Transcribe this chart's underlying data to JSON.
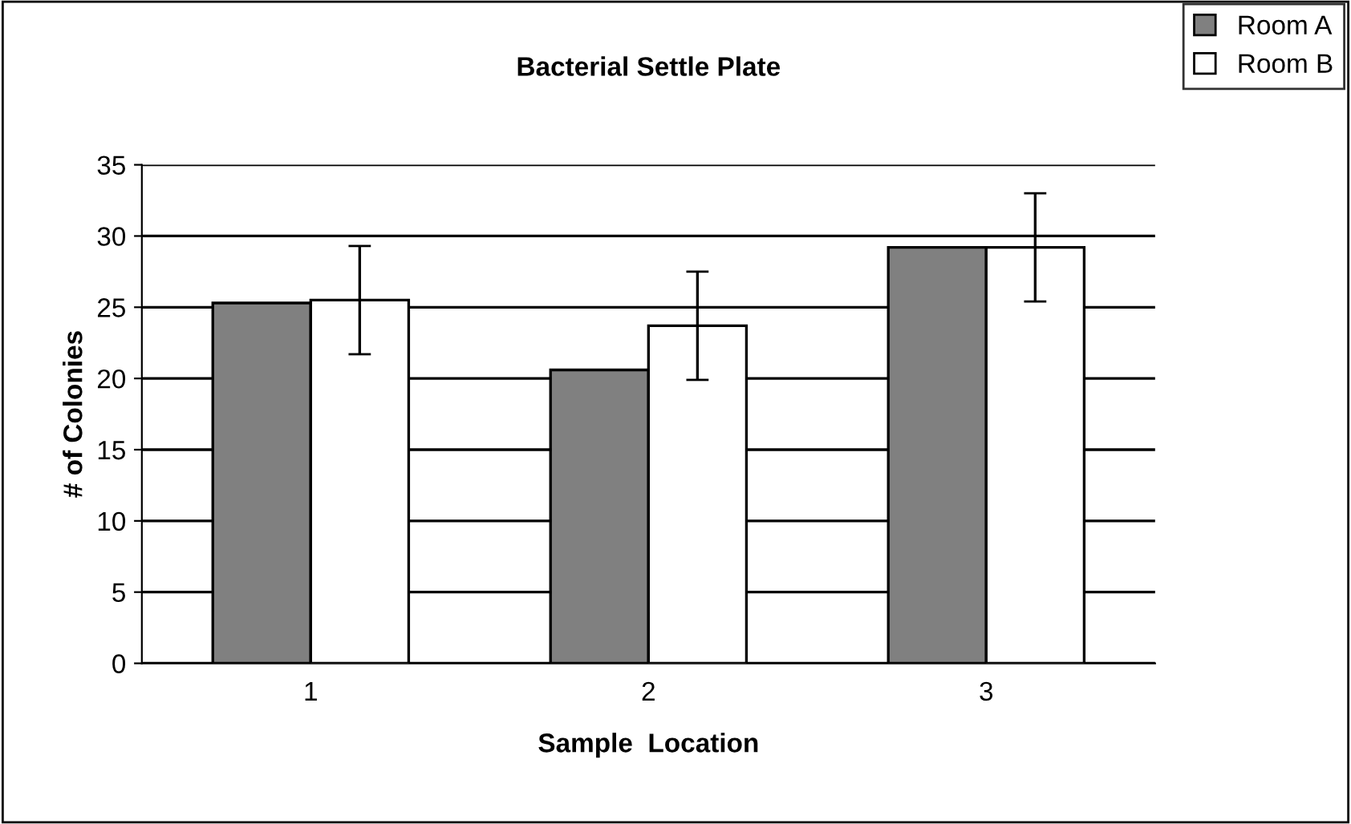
{
  "chart_data": {
    "type": "bar",
    "title": "Bacterial Settle Plate",
    "xlabel": "Sample  Location",
    "ylabel": "# of Colonies",
    "categories": [
      "1",
      "2",
      "3"
    ],
    "series": [
      {
        "name": "Room A",
        "color": "#808080",
        "values": [
          25.3,
          20.6,
          29.2
        ]
      },
      {
        "name": "Room B",
        "color": "#ffffff",
        "values": [
          25.5,
          23.7,
          29.2
        ],
        "errors": [
          3.8,
          3.8,
          3.8
        ]
      }
    ],
    "ylim": [
      0,
      35
    ],
    "yticks": [
      0,
      5,
      10,
      15,
      20,
      25,
      30,
      35
    ],
    "grid": "y",
    "legend": "top right"
  }
}
